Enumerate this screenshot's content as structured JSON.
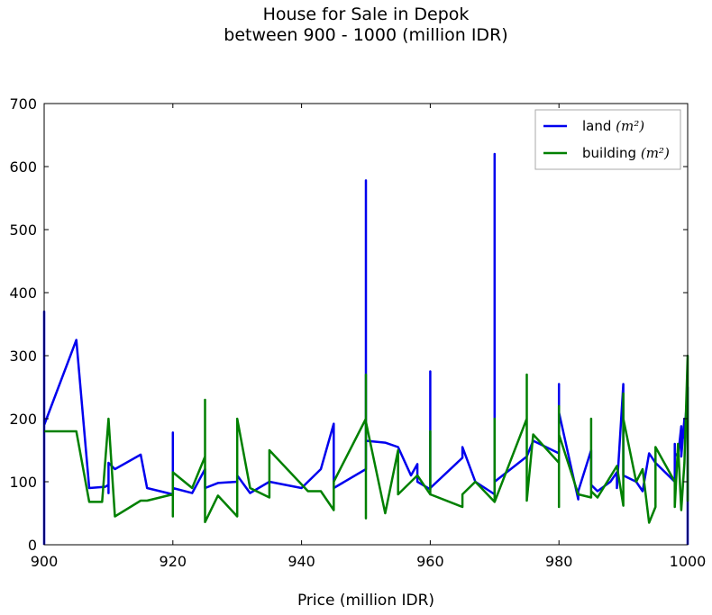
{
  "chart_data": {
    "type": "line",
    "title": "House for Sale in Depok",
    "subtitle": "between 900 - 1000 (million IDR)",
    "xlabel": "Price (million IDR)",
    "ylabel": "",
    "xlim": [
      900,
      1000
    ],
    "ylim": [
      0,
      700
    ],
    "xticks": [
      900,
      920,
      940,
      960,
      980,
      1000
    ],
    "yticks": [
      0,
      100,
      200,
      300,
      400,
      500,
      600,
      700
    ],
    "grid": false,
    "legend_position": "top-right",
    "series": [
      {
        "name": "land (m²)",
        "legend_prefix": "land ",
        "legend_math": "(m²)",
        "color": "#0000ee",
        "x": [
          900,
          900,
          900,
          900,
          905,
          907,
          909.5,
          910,
          910,
          910,
          911,
          915,
          916,
          920,
          920,
          920,
          923,
          925,
          925,
          927,
          930,
          930,
          932,
          935,
          940,
          943,
          945,
          945,
          945,
          950,
          950,
          950,
          950,
          950,
          953,
          955,
          957,
          958,
          958,
          960,
          960,
          960,
          965,
          965,
          967,
          970,
          970,
          970,
          975,
          976,
          980,
          980,
          980,
          980,
          983,
          983,
          985,
          985,
          986,
          988,
          989,
          989,
          990,
          990,
          990,
          992,
          993,
          994,
          995,
          998,
          998,
          998,
          998.5,
          999,
          999,
          999.5,
          999.5,
          1000,
          1000,
          1000
        ],
        "values": [
          0,
          370,
          340,
          190,
          325,
          90,
          92,
          95,
          82,
          130,
          120,
          143,
          90,
          80,
          178,
          90,
          82,
          120,
          90,
          98,
          100,
          110,
          82,
          100,
          90,
          120,
          192,
          180,
          90,
          120,
          578,
          570,
          120,
          165,
          162,
          155,
          110,
          128,
          100,
          88,
          275,
          90,
          138,
          155,
          100,
          80,
          620,
          100,
          140,
          165,
          145,
          255,
          250,
          210,
          72,
          85,
          150,
          95,
          85,
          100,
          115,
          90,
          255,
          240,
          110,
          100,
          85,
          145,
          130,
          100,
          160,
          145,
          140,
          188,
          140,
          200,
          170,
          250,
          175,
          0
        ]
      },
      {
        "name": "building (m²)",
        "legend_prefix": "building ",
        "legend_math": "(m²)",
        "color": "#008000",
        "x": [
          900,
          905,
          907,
          909,
          910,
          910,
          911,
          915,
          916,
          920,
          920,
          920,
          923,
          925,
          925,
          925,
          927,
          930,
          930,
          930,
          932,
          935,
          935,
          941,
          943,
          945,
          945,
          950,
          950,
          950,
          950,
          953,
          955,
          955,
          955,
          958,
          960,
          960,
          960,
          965,
          965,
          967,
          970,
          970,
          970,
          975,
          975,
          975,
          976,
          980,
          980,
          980,
          980,
          983,
          985,
          985,
          985,
          986,
          989,
          990,
          990,
          990,
          992,
          993,
          994,
          995,
          995,
          998,
          998,
          998.5,
          999,
          999.5,
          1000,
          1000,
          1000
        ],
        "values": [
          180,
          180,
          68,
          68,
          200,
          200,
          45,
          70,
          70,
          80,
          45,
          115,
          90,
          140,
          230,
          36,
          78,
          45,
          200,
          200,
          90,
          75,
          150,
          85,
          85,
          55,
          100,
          200,
          270,
          42,
          195,
          50,
          150,
          80,
          80,
          110,
          80,
          180,
          80,
          60,
          80,
          100,
          68,
          200,
          68,
          200,
          270,
          70,
          175,
          130,
          60,
          220,
          175,
          80,
          75,
          200,
          85,
          75,
          125,
          62,
          240,
          200,
          100,
          120,
          35,
          60,
          155,
          100,
          60,
          160,
          55,
          130,
          300,
          70,
          95
        ]
      }
    ]
  }
}
